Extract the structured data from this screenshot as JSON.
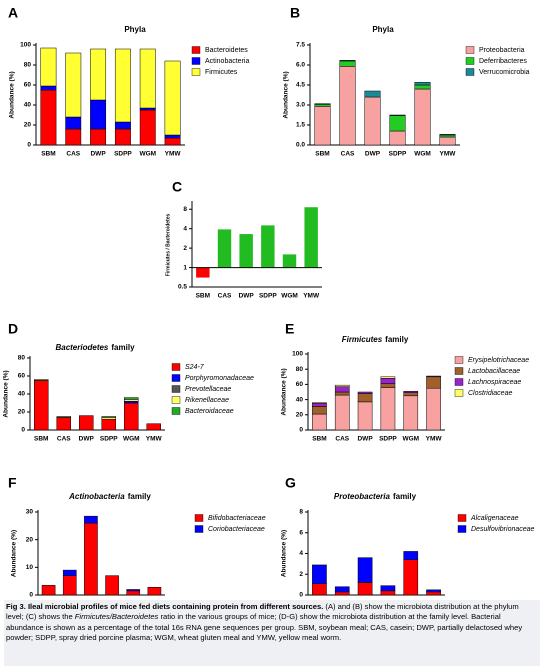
{
  "chart_data": [
    {
      "panel": "A",
      "type": "bar",
      "stacked": true,
      "title": "Phyla",
      "ylabel": "Abundance (%)",
      "categories": [
        "SBM",
        "CAS",
        "DWP",
        "SDPP",
        "WGM",
        "YMW"
      ],
      "series": [
        {
          "name": "Bacteroidetes",
          "color": "#ff0000",
          "values": [
            55,
            16,
            16,
            16,
            35,
            7
          ]
        },
        {
          "name": "Actinobacteria",
          "color": "#0000ff",
          "values": [
            4,
            12,
            29,
            7,
            2,
            3
          ]
        },
        {
          "name": "Firmicutes",
          "color": "#ffff33",
          "values": [
            38,
            64,
            51,
            73,
            59,
            74
          ]
        }
      ],
      "ylim": [
        0,
        100
      ],
      "yticks": [
        0,
        20,
        40,
        60,
        80,
        100
      ]
    },
    {
      "panel": "B",
      "type": "bar",
      "stacked": true,
      "title": "Phyla",
      "ylabel": "Abundance (%)",
      "categories": [
        "SBM",
        "CAS",
        "DWP",
        "SDPP",
        "WGM",
        "YMW"
      ],
      "series": [
        {
          "name": "Proteobacteria",
          "color": "#f7a1a1",
          "values": [
            2.9,
            5.9,
            3.6,
            1.05,
            4.2,
            0.6
          ]
        },
        {
          "name": "Deferribacteres",
          "color": "#22cc22",
          "values": [
            0.15,
            0.4,
            0,
            1.15,
            0.3,
            0.15
          ]
        },
        {
          "name": "Verrucomicrobia",
          "color": "#1a8a9a",
          "values": [
            0.05,
            0.05,
            0.45,
            0.05,
            0.2,
            0.05
          ]
        }
      ],
      "ylim": [
        0,
        7.5
      ],
      "yticks": [
        {
          "value": 0,
          "label": "0.0"
        },
        1.5,
        {
          "value": 3,
          "label": "3.0"
        },
        4.5,
        {
          "value": 6,
          "label": "6.0"
        },
        7.5
      ]
    },
    {
      "panel": "C",
      "type": "bar",
      "log": true,
      "ylabel": "Firmicutes / Bacteroidetes",
      "categories": [
        "SBM",
        "CAS",
        "DWP",
        "SDPP",
        "WGM",
        "YMW"
      ],
      "values": [
        0.7,
        3.9,
        3.3,
        4.5,
        1.6,
        8.6
      ],
      "colors": [
        "#ff0000",
        "#22bb22",
        "#22bb22",
        "#22bb22",
        "#22bb22",
        "#22bb22"
      ],
      "ylim": [
        0.5,
        10
      ],
      "yticks": [
        0.5,
        1,
        2,
        4,
        8
      ]
    },
    {
      "panel": "D",
      "type": "bar",
      "stacked": true,
      "legend_italic": true,
      "title": {
        "italic": "Bacteriodetes",
        "plain": "family"
      },
      "ylabel": "Abundance (%)",
      "categories": [
        "SBM",
        "CAS",
        "DWP",
        "SDPP",
        "WGM",
        "YMW"
      ],
      "series": [
        {
          "name": "S24-7",
          "color": "#ff0000",
          "values": [
            55,
            14,
            16,
            12,
            30,
            7
          ]
        },
        {
          "name": "Porphyromonadaceae",
          "color": "#0000ff",
          "values": [
            0,
            0,
            0,
            0,
            2,
            0
          ]
        },
        {
          "name": "Prevotellaceae",
          "color": "#555555",
          "values": [
            0,
            0,
            0,
            0,
            0,
            0
          ]
        },
        {
          "name": "Rikenellaceae",
          "color": "#ffff66",
          "values": [
            0,
            0,
            0,
            2,
            2,
            0
          ]
        },
        {
          "name": "Bacteroidaceae",
          "color": "#22aa22",
          "values": [
            1,
            1,
            0,
            1,
            2,
            0
          ]
        }
      ],
      "ylim": [
        0,
        80
      ],
      "yticks": [
        0,
        20,
        40,
        60,
        80
      ]
    },
    {
      "panel": "E",
      "type": "bar",
      "stacked": true,
      "legend_italic": true,
      "title": {
        "italic": "Firmicutes",
        "plain": "family"
      },
      "ylabel": "Abundance (%)",
      "categories": [
        "SBM",
        "CAS",
        "DWP",
        "SDPP",
        "WGM",
        "YMW"
      ],
      "series": [
        {
          "name": "Erysipelotrichaceae",
          "color": "#f7a1a1",
          "values": [
            21,
            46,
            37,
            56,
            45,
            55
          ]
        },
        {
          "name": "Lactobacillaceae",
          "color": "#a0602a",
          "values": [
            10,
            4,
            11,
            5,
            4,
            15
          ]
        },
        {
          "name": "Lachnospiraceae",
          "color": "#9922cc",
          "values": [
            4,
            7,
            2,
            7,
            2,
            1
          ]
        },
        {
          "name": "Clostridiaceae",
          "color": "#ffff66",
          "values": [
            1,
            2,
            0,
            2,
            0,
            0
          ]
        }
      ],
      "ylim": [
        0,
        100
      ],
      "yticks": [
        0,
        20,
        40,
        60,
        80,
        100
      ]
    },
    {
      "panel": "F",
      "type": "bar",
      "stacked": true,
      "legend_italic": true,
      "title": {
        "italic": "Actinobacteria",
        "plain": "family"
      },
      "ylabel": "Abundance (%)",
      "categories": [
        "SBM",
        "CAS",
        "DWP",
        "SDPP",
        "WGM",
        "YMW"
      ],
      "series": [
        {
          "name": "Bifidobacteriaceae",
          "color": "#ff0000",
          "values": [
            3.5,
            7,
            26,
            7,
            1.5,
            2.8
          ]
        },
        {
          "name": "Coriobacteriaceae",
          "color": "#0000ff",
          "values": [
            0,
            2,
            2.5,
            0,
            0.5,
            0
          ]
        }
      ],
      "ylim": [
        0,
        30
      ],
      "yticks": [
        0,
        10,
        20,
        30
      ]
    },
    {
      "panel": "G",
      "type": "bar",
      "stacked": true,
      "legend_italic": true,
      "title": {
        "italic": "Proteobacteria",
        "plain": "family"
      },
      "ylabel": "Abundance (%)",
      "categories": [
        "SBM",
        "CAS",
        "DWP",
        "SDPP",
        "WGM",
        "YMW"
      ],
      "series": [
        {
          "name": "Alcaligenaceae",
          "color": "#ff0000",
          "values": [
            1.1,
            0.3,
            1.2,
            0.4,
            3.4,
            0.3
          ]
        },
        {
          "name": "Desulfovibrionaceae",
          "color": "#0000ff",
          "values": [
            1.8,
            0.5,
            2.4,
            0.5,
            0.8,
            0.2
          ]
        }
      ],
      "ylim": [
        0,
        8
      ],
      "yticks": [
        0,
        2,
        4,
        6,
        8
      ]
    }
  ],
  "caption": {
    "lead": "Fig 3. Ileal microbial profiles of mice fed diets containing protein from different sources.",
    "parts": [
      " (A) and (B) show the microbiota distribution at the phylum level; (C) shows the ",
      "Firmicutes/Bacteroidetes",
      " ratio in the various groups of mice; (D-G) show the microbiota distribution at the family level. Bacterial abundance is shown as a percentage of the total 16s RNA gene sequences per group. SBM, soybean meal; CAS, casein; DWP, partially delactosed whey powder; SDPP, spray dried porcine plasma; WGM, wheat gluten meal and YMW, yellow meal worm."
    ]
  }
}
